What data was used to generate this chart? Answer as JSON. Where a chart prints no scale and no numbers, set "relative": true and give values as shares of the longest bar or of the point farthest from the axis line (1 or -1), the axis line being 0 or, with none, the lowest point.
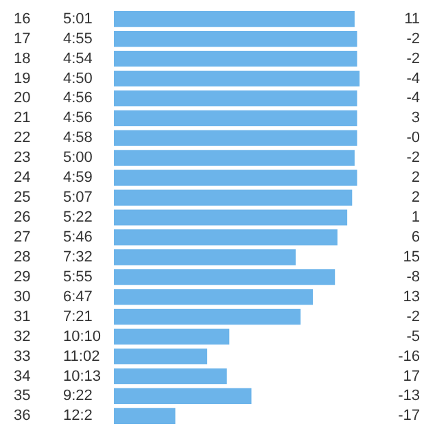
{
  "chart_data": {
    "type": "bar",
    "orientation": "horizontal",
    "relative": true,
    "legend": false,
    "categories": [
      "16",
      "17",
      "18",
      "19",
      "20",
      "21",
      "22",
      "23",
      "24",
      "25",
      "26",
      "27",
      "28",
      "29",
      "30",
      "31",
      "32",
      "33",
      "34",
      "35",
      "36"
    ],
    "series": [
      {
        "color": "#6cb4ea",
        "values": [
          0.98,
          0.99,
          0.99,
          1,
          0.99,
          0.99,
          0.99,
          0.98,
          0.99,
          0.97,
          0.95,
          0.91,
          0.74,
          0.9,
          0.81,
          0.76,
          0.47,
          0.38,
          0.46,
          0.56,
          0.25
        ]
      }
    ],
    "annotations": [
      "5:01",
      "4:55",
      "4:54",
      "4:50",
      "4:56",
      "4:56",
      "4:58",
      "5:00",
      "4:59",
      "5:07",
      "5:22",
      "5:46",
      "7:32",
      "5:55",
      "6:47",
      "7:21",
      "10:10",
      "11:02",
      "10:13",
      "9:22",
      "12:2",
      "11",
      "-2",
      "-2",
      "-4",
      "-4",
      "3",
      "-0",
      "-2",
      "2",
      "2",
      "1",
      "6",
      "15",
      "-8",
      "13",
      "-2",
      "-5",
      "-16",
      "17",
      "-13",
      "-17"
    ]
  }
}
